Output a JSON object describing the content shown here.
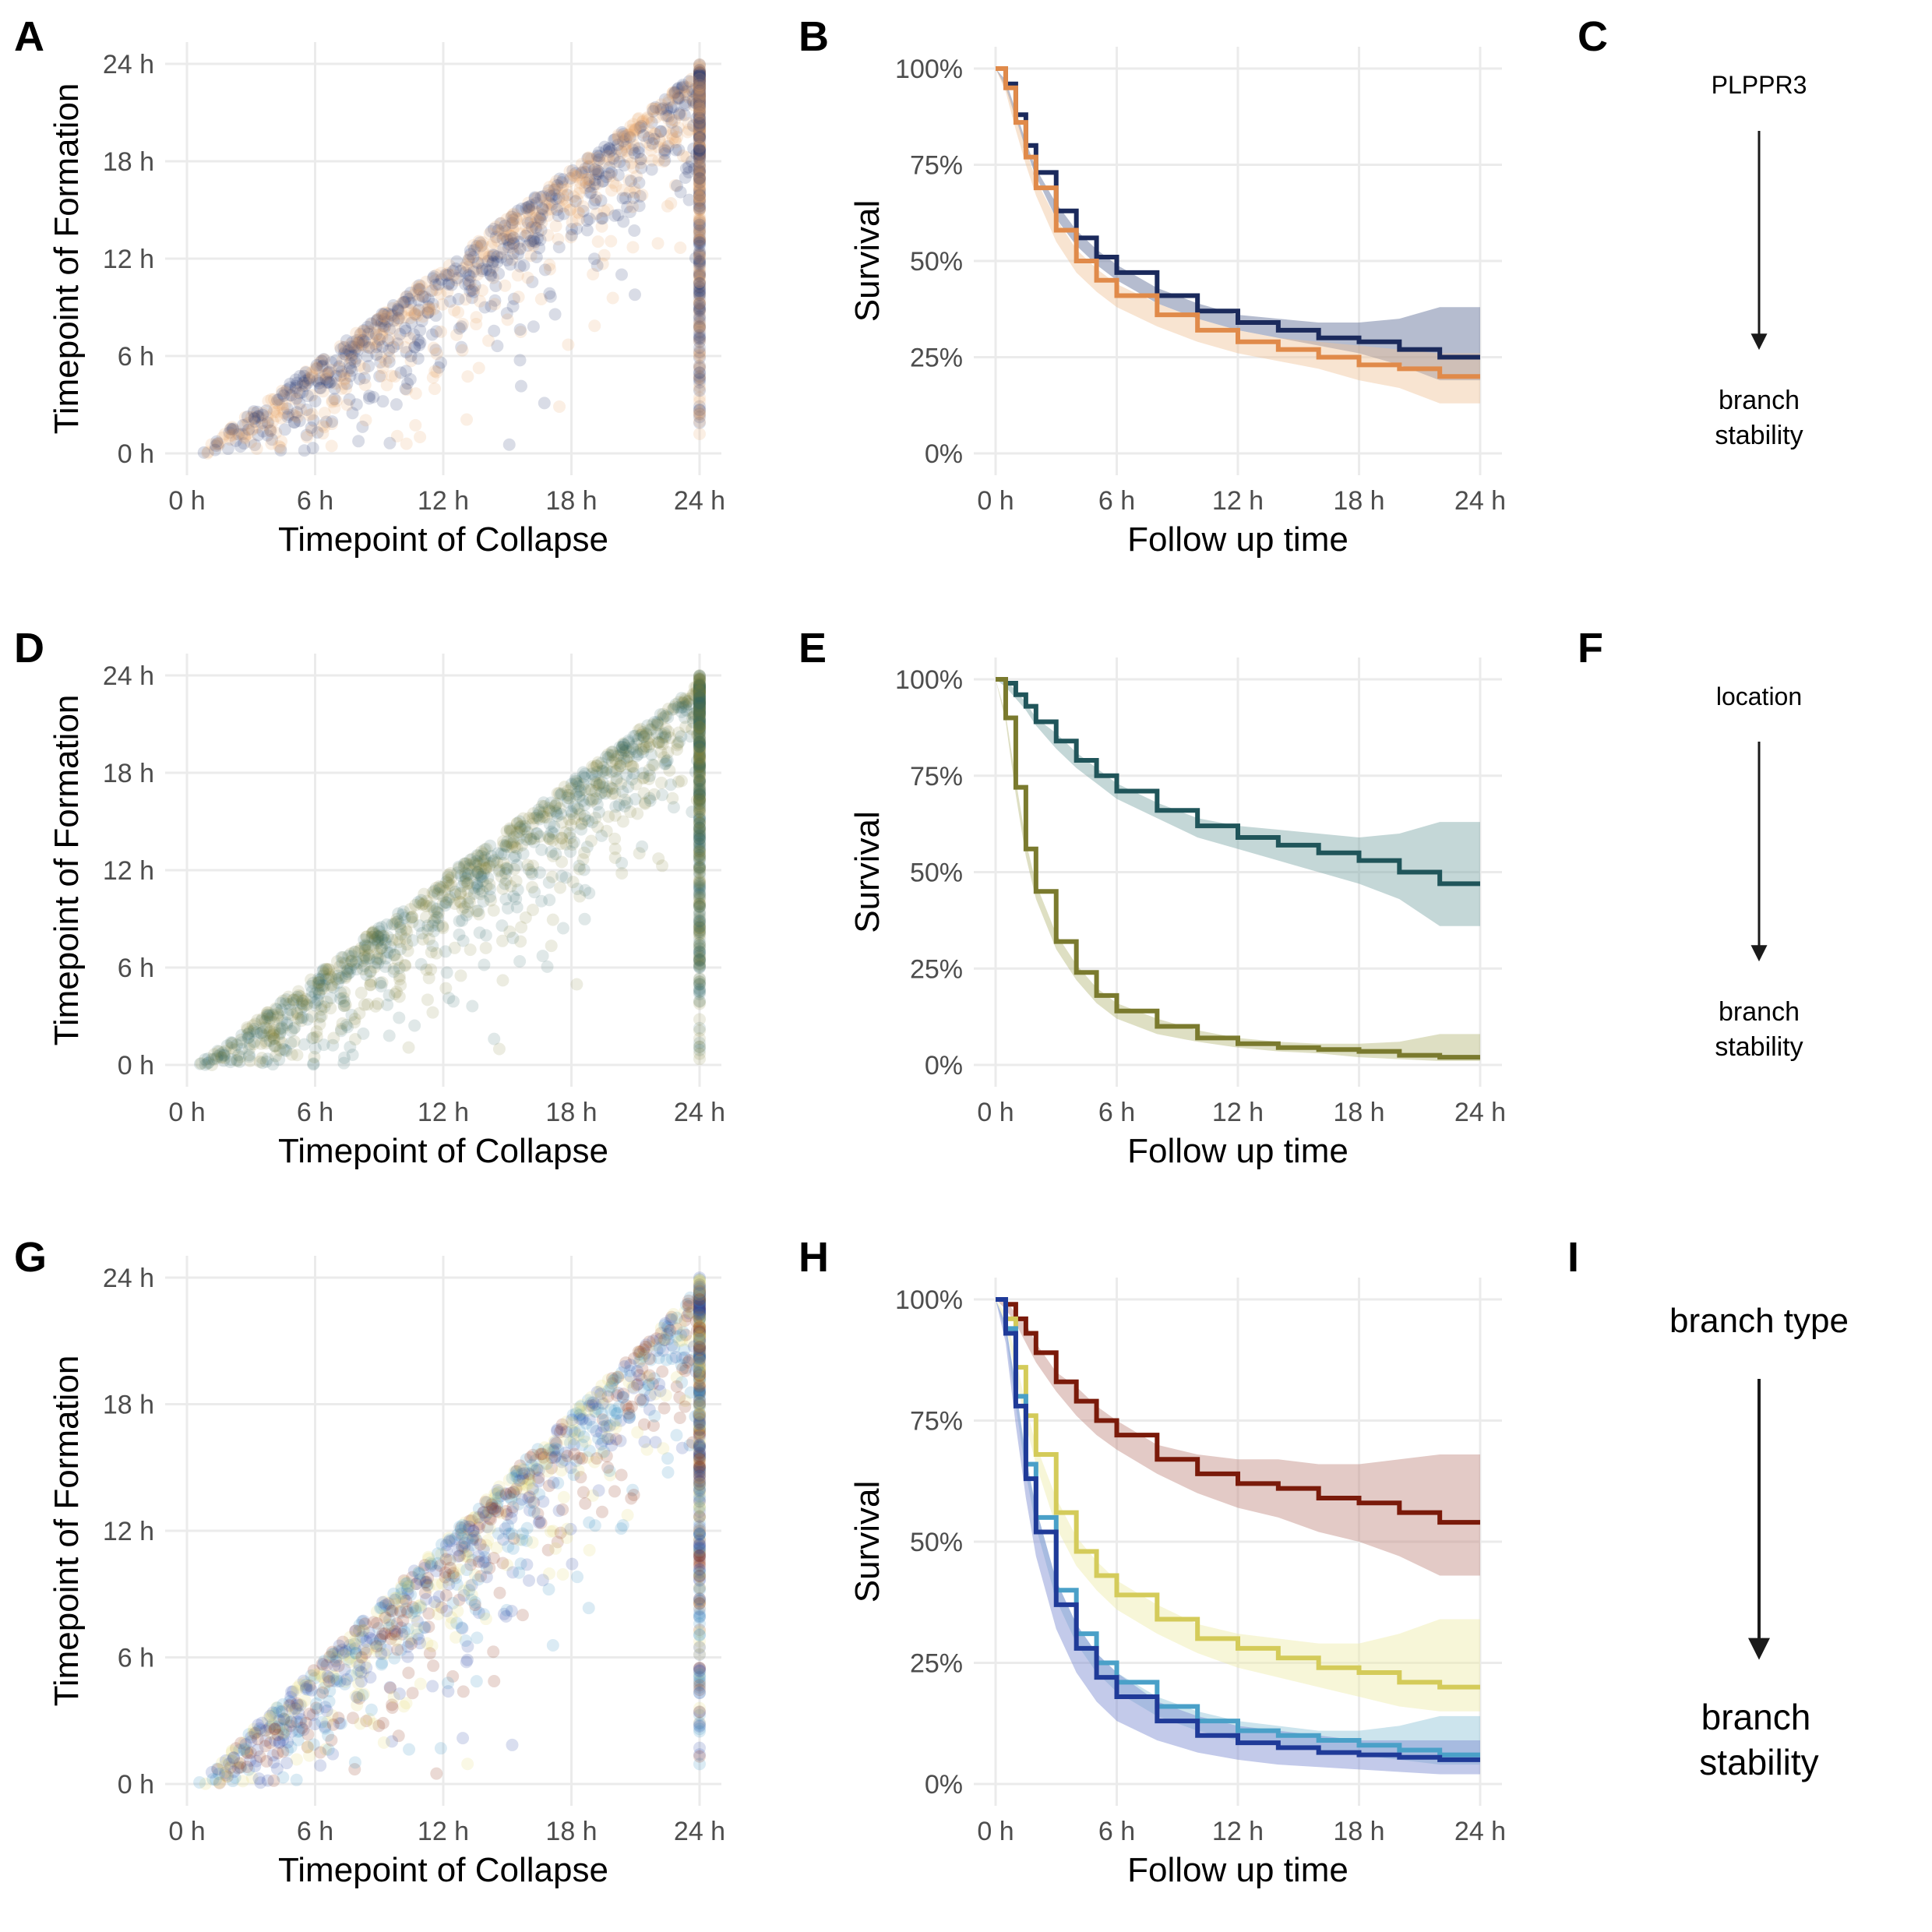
{
  "panel_letters": [
    "A",
    "B",
    "C",
    "D",
    "E",
    "F",
    "G",
    "H",
    "I"
  ],
  "chart_data": [
    {
      "panel": "A",
      "type": "scatter",
      "xlabel": "Timepoint of Collapse",
      "ylabel": "Timepoint of Formation",
      "x_ticks": [
        "0 h",
        "6 h",
        "12 h",
        "18 h",
        "24 h"
      ],
      "y_ticks": [
        "0 h",
        "6 h",
        "12 h",
        "18 h",
        "24 h"
      ],
      "xlim": [
        0,
        24
      ],
      "ylim": [
        0,
        24
      ],
      "grid": true,
      "legend": "none",
      "point_alpha": 0.18,
      "series_colors": [
        "#e8a768",
        "#2e3f74"
      ],
      "description": "formation <= collapse; column of censored points at x = 24"
    },
    {
      "panel": "B",
      "type": "line",
      "xlabel": "Follow up time",
      "ylabel": "Survival",
      "x_ticks": [
        "0 h",
        "6 h",
        "12 h",
        "18 h",
        "24 h"
      ],
      "y_ticks": [
        "0%",
        "25%",
        "50%",
        "75%",
        "100%"
      ],
      "xlim": [
        0,
        24
      ],
      "ylim": [
        0,
        1
      ],
      "grid": true,
      "legend": "none",
      "x": [
        0,
        0.5,
        1,
        1.5,
        2,
        3,
        4,
        5,
        6,
        8,
        10,
        12,
        14,
        16,
        18,
        20,
        22,
        24
      ],
      "series": [
        {
          "color": "#1b2a5c",
          "band_color": "#5c6b94",
          "values": [
            1.0,
            0.96,
            0.88,
            0.8,
            0.73,
            0.63,
            0.56,
            0.51,
            0.47,
            0.41,
            0.37,
            0.34,
            0.32,
            0.3,
            0.29,
            0.27,
            0.25,
            0.25
          ],
          "lower": [
            1.0,
            0.95,
            0.87,
            0.79,
            0.72,
            0.61,
            0.54,
            0.49,
            0.45,
            0.39,
            0.35,
            0.32,
            0.3,
            0.28,
            0.26,
            0.23,
            0.19,
            0.19
          ],
          "upper": [
            1.0,
            0.97,
            0.89,
            0.81,
            0.74,
            0.65,
            0.58,
            0.53,
            0.49,
            0.43,
            0.39,
            0.36,
            0.35,
            0.34,
            0.34,
            0.35,
            0.38,
            0.38
          ]
        },
        {
          "color": "#e08a4a",
          "band_color": "#f0c39a",
          "values": [
            1.0,
            0.95,
            0.86,
            0.77,
            0.69,
            0.58,
            0.5,
            0.45,
            0.41,
            0.36,
            0.32,
            0.29,
            0.27,
            0.25,
            0.23,
            0.22,
            0.2,
            0.2
          ],
          "lower": [
            1.0,
            0.94,
            0.84,
            0.75,
            0.67,
            0.55,
            0.47,
            0.42,
            0.38,
            0.33,
            0.29,
            0.26,
            0.24,
            0.22,
            0.19,
            0.17,
            0.13,
            0.13
          ],
          "upper": [
            1.0,
            0.96,
            0.88,
            0.79,
            0.71,
            0.61,
            0.53,
            0.48,
            0.44,
            0.39,
            0.35,
            0.32,
            0.3,
            0.29,
            0.28,
            0.27,
            0.26,
            0.26
          ]
        }
      ]
    },
    {
      "panel": "D",
      "type": "scatter",
      "xlabel": "Timepoint of Collapse",
      "ylabel": "Timepoint of Formation",
      "x_ticks": [
        "0 h",
        "6 h",
        "12 h",
        "18 h",
        "24 h"
      ],
      "y_ticks": [
        "0 h",
        "6 h",
        "12 h",
        "18 h",
        "24 h"
      ],
      "xlim": [
        0,
        24
      ],
      "ylim": [
        0,
        24
      ],
      "grid": true,
      "legend": "none",
      "point_alpha": 0.15,
      "series_colors": [
        "#7d8138",
        "#2e6266"
      ]
    },
    {
      "panel": "E",
      "type": "line",
      "xlabel": "Follow up time",
      "ylabel": "Survival",
      "x_ticks": [
        "0 h",
        "6 h",
        "12 h",
        "18 h",
        "24 h"
      ],
      "y_ticks": [
        "0%",
        "25%",
        "50%",
        "75%",
        "100%"
      ],
      "xlim": [
        0,
        24
      ],
      "ylim": [
        0,
        1
      ],
      "grid": true,
      "legend": "none",
      "x": [
        0,
        0.5,
        1,
        1.5,
        2,
        3,
        4,
        5,
        6,
        8,
        10,
        12,
        14,
        16,
        18,
        20,
        22,
        24
      ],
      "series": [
        {
          "color": "#20555a",
          "band_color": "#7da6a6",
          "values": [
            1.0,
            0.99,
            0.96,
            0.93,
            0.89,
            0.84,
            0.79,
            0.75,
            0.71,
            0.66,
            0.62,
            0.59,
            0.57,
            0.55,
            0.53,
            0.5,
            0.47,
            0.47
          ],
          "lower": [
            1.0,
            0.98,
            0.95,
            0.92,
            0.88,
            0.82,
            0.77,
            0.73,
            0.69,
            0.64,
            0.59,
            0.56,
            0.53,
            0.5,
            0.47,
            0.43,
            0.36,
            0.36
          ],
          "upper": [
            1.0,
            1.0,
            0.97,
            0.94,
            0.9,
            0.86,
            0.81,
            0.77,
            0.73,
            0.68,
            0.64,
            0.62,
            0.61,
            0.6,
            0.59,
            0.6,
            0.63,
            0.63
          ]
        },
        {
          "color": "#7a7a2e",
          "band_color": "#b5b77a",
          "values": [
            1.0,
            0.9,
            0.72,
            0.56,
            0.45,
            0.32,
            0.24,
            0.18,
            0.14,
            0.1,
            0.07,
            0.055,
            0.045,
            0.04,
            0.035,
            0.025,
            0.02,
            0.02
          ],
          "lower": [
            1.0,
            0.89,
            0.7,
            0.54,
            0.43,
            0.3,
            0.22,
            0.16,
            0.12,
            0.08,
            0.06,
            0.045,
            0.035,
            0.03,
            0.02,
            0.015,
            0.01,
            0.01
          ],
          "upper": [
            1.0,
            0.91,
            0.74,
            0.58,
            0.47,
            0.34,
            0.26,
            0.2,
            0.16,
            0.12,
            0.09,
            0.07,
            0.06,
            0.055,
            0.055,
            0.06,
            0.08,
            0.08
          ]
        }
      ]
    },
    {
      "panel": "G",
      "type": "scatter",
      "xlabel": "Timepoint of Collapse",
      "ylabel": "Timepoint of Formation",
      "x_ticks": [
        "0 h",
        "6 h",
        "12 h",
        "18 h",
        "24 h"
      ],
      "y_ticks": [
        "0 h",
        "6 h",
        "12 h",
        "18 h",
        "24 h"
      ],
      "xlim": [
        0,
        24
      ],
      "ylim": [
        0,
        24
      ],
      "grid": true,
      "legend": "none",
      "point_alpha": 0.18,
      "series_colors": [
        "#3a8fc2",
        "#e3da6e",
        "#8a2a12",
        "#2a46a5"
      ]
    },
    {
      "panel": "H",
      "type": "line",
      "xlabel": "Follow up time",
      "ylabel": "Survival",
      "x_ticks": [
        "0 h",
        "6 h",
        "12 h",
        "18 h",
        "24 h"
      ],
      "y_ticks": [
        "0%",
        "25%",
        "50%",
        "75%",
        "100%"
      ],
      "xlim": [
        0,
        24
      ],
      "ylim": [
        0,
        1
      ],
      "grid": true,
      "legend": "none",
      "x": [
        0,
        0.5,
        1,
        1.5,
        2,
        3,
        4,
        5,
        6,
        8,
        10,
        12,
        14,
        16,
        18,
        20,
        22,
        24
      ],
      "series": [
        {
          "color": "#7a1a0a",
          "band_color": "#c08a80",
          "values": [
            1.0,
            0.99,
            0.96,
            0.93,
            0.89,
            0.83,
            0.79,
            0.75,
            0.72,
            0.67,
            0.64,
            0.62,
            0.61,
            0.59,
            0.58,
            0.56,
            0.54,
            0.54
          ],
          "lower": [
            1.0,
            0.98,
            0.95,
            0.91,
            0.87,
            0.81,
            0.76,
            0.72,
            0.69,
            0.64,
            0.6,
            0.57,
            0.55,
            0.52,
            0.5,
            0.47,
            0.43,
            0.43
          ],
          "upper": [
            1.0,
            1.0,
            0.97,
            0.95,
            0.91,
            0.85,
            0.82,
            0.78,
            0.75,
            0.7,
            0.68,
            0.67,
            0.67,
            0.66,
            0.66,
            0.67,
            0.68,
            0.68
          ]
        },
        {
          "color": "#d4cb5a",
          "band_color": "#eeeaa8",
          "values": [
            1.0,
            0.96,
            0.86,
            0.76,
            0.68,
            0.56,
            0.48,
            0.43,
            0.39,
            0.34,
            0.3,
            0.28,
            0.26,
            0.24,
            0.23,
            0.21,
            0.2,
            0.2
          ],
          "lower": [
            1.0,
            0.95,
            0.84,
            0.74,
            0.66,
            0.53,
            0.45,
            0.4,
            0.36,
            0.31,
            0.27,
            0.24,
            0.22,
            0.2,
            0.18,
            0.16,
            0.15,
            0.15
          ],
          "upper": [
            1.0,
            0.97,
            0.88,
            0.78,
            0.7,
            0.59,
            0.51,
            0.46,
            0.42,
            0.37,
            0.33,
            0.31,
            0.3,
            0.29,
            0.29,
            0.31,
            0.34,
            0.34
          ]
        },
        {
          "color": "#4aa0c8",
          "band_color": "#8fc3d8",
          "values": [
            1.0,
            0.94,
            0.8,
            0.66,
            0.55,
            0.4,
            0.31,
            0.25,
            0.21,
            0.16,
            0.13,
            0.11,
            0.1,
            0.09,
            0.08,
            0.07,
            0.06,
            0.06
          ],
          "lower": [
            1.0,
            0.93,
            0.78,
            0.64,
            0.53,
            0.38,
            0.29,
            0.23,
            0.19,
            0.14,
            0.11,
            0.09,
            0.08,
            0.07,
            0.06,
            0.05,
            0.04,
            0.04
          ],
          "upper": [
            1.0,
            0.95,
            0.82,
            0.68,
            0.57,
            0.42,
            0.33,
            0.27,
            0.23,
            0.18,
            0.15,
            0.13,
            0.12,
            0.11,
            0.11,
            0.12,
            0.14,
            0.14
          ]
        },
        {
          "color": "#1f3a98",
          "band_color": "#7a8ad0",
          "values": [
            1.0,
            0.93,
            0.78,
            0.63,
            0.52,
            0.37,
            0.28,
            0.22,
            0.18,
            0.13,
            0.1,
            0.085,
            0.075,
            0.065,
            0.06,
            0.055,
            0.05,
            0.05
          ],
          "lower": [
            1.0,
            0.91,
            0.74,
            0.59,
            0.47,
            0.32,
            0.23,
            0.17,
            0.13,
            0.09,
            0.065,
            0.05,
            0.04,
            0.035,
            0.03,
            0.025,
            0.02,
            0.02
          ],
          "upper": [
            1.0,
            0.95,
            0.82,
            0.67,
            0.57,
            0.42,
            0.33,
            0.27,
            0.23,
            0.17,
            0.14,
            0.12,
            0.11,
            0.1,
            0.09,
            0.09,
            0.09,
            0.09
          ]
        }
      ]
    }
  ],
  "diagrams": [
    {
      "panel": "C",
      "top": "PLPPR3",
      "bottom_line1": "branch",
      "bottom_line2": "stability"
    },
    {
      "panel": "F",
      "top": "location",
      "bottom_line1": "branch",
      "bottom_line2": "stability"
    },
    {
      "panel": "I",
      "top": "branch type",
      "bottom_line1": "branch",
      "bottom_line2": "stability"
    }
  ]
}
